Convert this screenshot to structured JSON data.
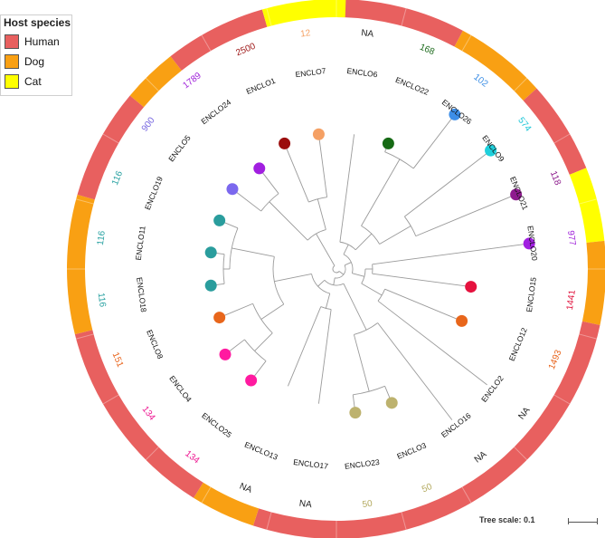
{
  "legend": {
    "title": "Host species",
    "items": [
      {
        "label": "Human",
        "color": "#e8605f"
      },
      {
        "label": "Dog",
        "color": "#f9a013"
      },
      {
        "label": "Cat",
        "color": "#ffff00"
      }
    ]
  },
  "tree_scale_label": "Tree scale: 0.1",
  "colors": {
    "branch": "#9a9a9a",
    "ring_divider": "#ffffff"
  },
  "host_ring": [
    {
      "host": "Human",
      "from": 270,
      "to": 298
    },
    {
      "host": "Dog",
      "from": 298,
      "to": 318
    },
    {
      "host": "Human",
      "from": 318,
      "to": 338
    },
    {
      "host": "Cat",
      "from": 338,
      "to": 354
    },
    {
      "host": "Dog",
      "from": 354,
      "to": 372
    },
    {
      "host": "Human",
      "from": 372,
      "to": 468
    },
    {
      "host": "Dog",
      "from": 468,
      "to": 482
    },
    {
      "host": "Human",
      "from": 482,
      "to": 526
    },
    {
      "host": "Dog",
      "from": 526,
      "to": 556
    },
    {
      "host": "Human",
      "from": 556,
      "to": 580
    },
    {
      "host": "Dog",
      "from": 580,
      "to": 592
    },
    {
      "host": "Human",
      "from": 592,
      "to": 614
    },
    {
      "host": "Cat",
      "from": 614,
      "to": 632
    }
  ],
  "tips": [
    {
      "name": "ENCLO6",
      "st": "NA",
      "st_color": "#222222",
      "dot": null
    },
    {
      "name": "ENCLO22",
      "st": "168",
      "st_color": "#1e6b1e",
      "dot": "#166a15"
    },
    {
      "name": "ENCLO26",
      "st": "102",
      "st_color": "#3c8ee5",
      "dot": "#3d8ee8"
    },
    {
      "name": "ENCLO9",
      "st": "574",
      "st_color": "#1fc7d8",
      "dot": "#1ed0dc"
    },
    {
      "name": "ENCLO21",
      "st": "118",
      "st_color": "#8e1f8e",
      "dot": "#8e1b8e"
    },
    {
      "name": "ENCLO20",
      "st": "977",
      "st_color": "#9e1fd9",
      "dot": "#a11fe0"
    },
    {
      "name": "ENCLO15",
      "st": "1441",
      "st_color": "#e0123c",
      "dot": "#e5123e"
    },
    {
      "name": "ENCLO12",
      "st": "1493",
      "st_color": "#e8631a",
      "dot": "#e8661b"
    },
    {
      "name": "ENCLO2",
      "st": "NA",
      "st_color": "#222222",
      "dot": null
    },
    {
      "name": "ENCLO16",
      "st": "NA",
      "st_color": "#222222",
      "dot": null
    },
    {
      "name": "ENCLO3",
      "st": "50",
      "st_color": "#b3a95e",
      "dot": "#bdb26e"
    },
    {
      "name": "ENCLO23",
      "st": "50",
      "st_color": "#b3a95e",
      "dot": "#bdb26e"
    },
    {
      "name": "ENCLO17",
      "st": "NA",
      "st_color": "#222222",
      "dot": null
    },
    {
      "name": "ENCLO13",
      "st": "NA",
      "st_color": "#222222",
      "dot": null
    },
    {
      "name": "ENCLO25",
      "st": "134",
      "st_color": "#ee1a93",
      "dot": "#ff1aa0"
    },
    {
      "name": "ENCLO4",
      "st": "134",
      "st_color": "#ee1a93",
      "dot": "#ff1aa0"
    },
    {
      "name": "ENCLO8",
      "st": "151",
      "st_color": "#e8631a",
      "dot": "#e8661b"
    },
    {
      "name": "ENCLO18",
      "st": "116",
      "st_color": "#26a0a0",
      "dot": "#2a9d9d"
    },
    {
      "name": "ENCLO11",
      "st": "116",
      "st_color": "#26a0a0",
      "dot": "#2a9d9d"
    },
    {
      "name": "ENCLO19",
      "st": "116",
      "st_color": "#26a0a0",
      "dot": "#2a9d9d"
    },
    {
      "name": "ENCLO5",
      "st": "900",
      "st_color": "#7868e0",
      "dot": "#7b68ee"
    },
    {
      "name": "ENCLO24",
      "st": "1789",
      "st_color": "#9e1fd9",
      "dot": "#a11fe0"
    },
    {
      "name": "ENCLO1",
      "st": "2500",
      "st_color": "#9b1010",
      "dot": "#9b0d0d"
    },
    {
      "name": "ENCLO7",
      "st": "12",
      "st_color": "#f5a062",
      "dot": "#f5a064"
    }
  ]
}
